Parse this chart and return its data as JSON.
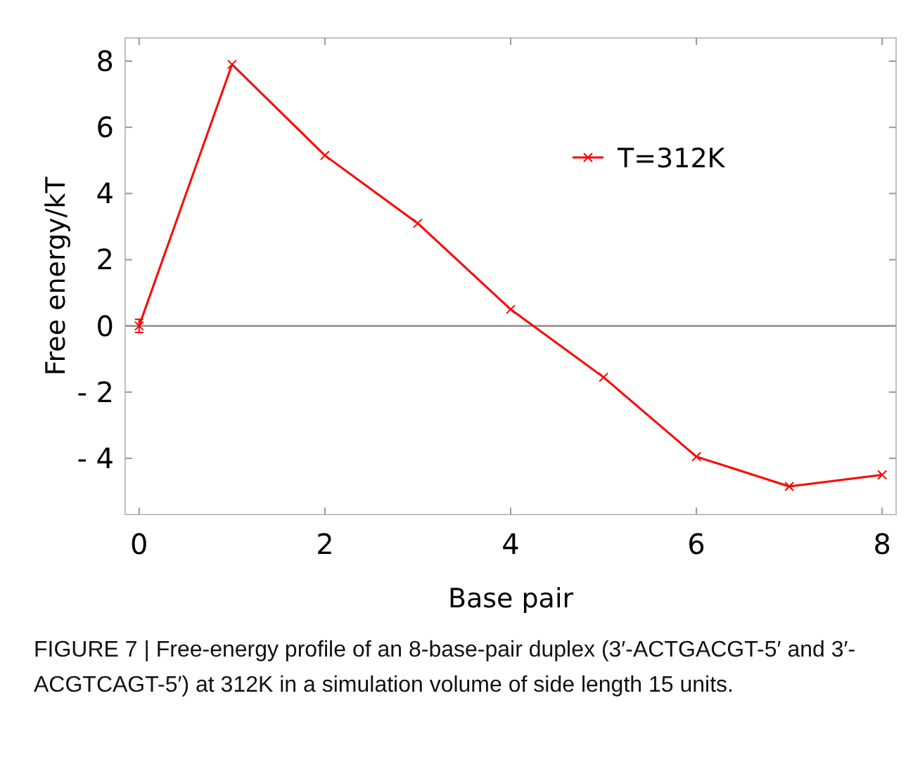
{
  "chart_data": {
    "type": "line",
    "xlabel": "Base pair",
    "ylabel": "Free energy/kT",
    "x": [
      0,
      1,
      2,
      3,
      4,
      5,
      6,
      7,
      8
    ],
    "series": [
      {
        "name": "T=312K",
        "color": "#ff0000",
        "values": [
          0,
          7.9,
          5.15,
          3.1,
          0.5,
          -1.55,
          -3.95,
          -4.85,
          -4.5
        ],
        "errors": [
          0.2,
          null,
          null,
          null,
          null,
          null,
          null,
          null,
          null
        ]
      }
    ],
    "xlim": [
      -0.15,
      8.15
    ],
    "xticks": [
      0,
      2,
      4,
      6,
      8
    ],
    "ylim": [
      -5.7,
      8.7
    ],
    "yticks": [
      {
        "value": -4,
        "label": "- 4"
      },
      {
        "value": -2,
        "label": "- 2"
      },
      0,
      2,
      4,
      6,
      8
    ],
    "ref_lines": [
      {
        "axis": "y",
        "value": 0,
        "color": "#808080"
      }
    ],
    "marker": "cross",
    "legend": "top right",
    "grid": false,
    "annotations": [
      "FIGURE 7 | Free-energy profile of an 8-base-pair duplex (3′-ACTGACGT-5′ and 3′-ACGTCAGT-5′) at 312K in a simulation volume of side length 15 units."
    ]
  }
}
